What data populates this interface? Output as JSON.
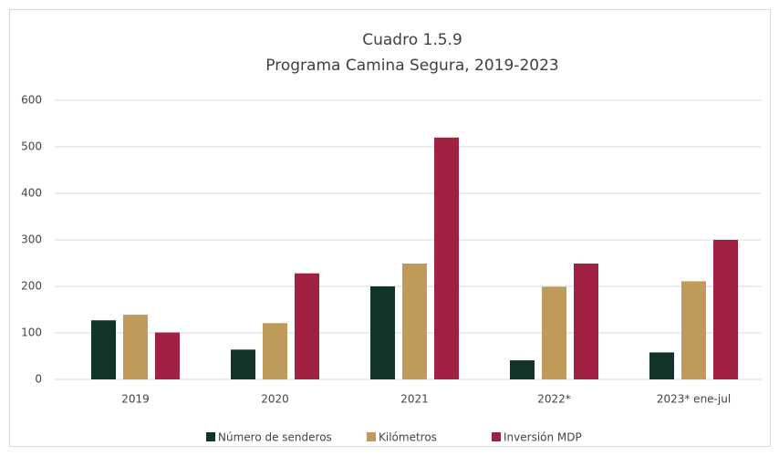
{
  "chart_data": {
    "type": "bar",
    "title": "Cuadro 1.5.9",
    "subtitle": "Programa Camina Segura, 2019-2023",
    "categories": [
      "2019",
      "2020",
      "2021",
      "2022*",
      "2023* ene-jul"
    ],
    "series": [
      {
        "name": "Número de senderos",
        "color": "#123329",
        "values": [
          127,
          64,
          200,
          41,
          58
        ]
      },
      {
        "name": "Kilómetros",
        "color": "#bf9a5a",
        "values": [
          139,
          121,
          249,
          199,
          211
        ]
      },
      {
        "name": "Inversión MDP",
        "color": "#a12142",
        "values": [
          101,
          228,
          520,
          249,
          300
        ]
      }
    ],
    "ylim": [
      0,
      600
    ],
    "yticks": [
      0,
      100,
      200,
      300,
      400,
      500,
      600
    ],
    "grid": true,
    "legend": "bottom"
  }
}
